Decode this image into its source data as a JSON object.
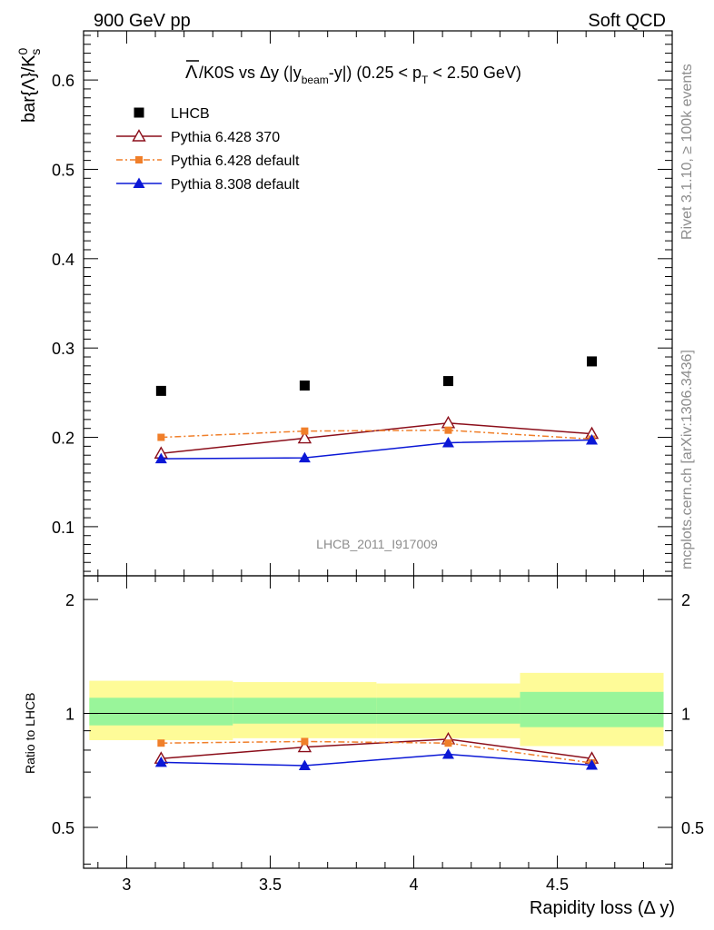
{
  "header": {
    "left": "900 GeV pp",
    "right": "Soft QCD"
  },
  "side_labels": {
    "rivet": "Rivet 3.1.10, ≥ 100k events",
    "mcplots": "mcplots.cern.ch [arXiv:1306.3436]"
  },
  "watermark": "LHCB_2011_I917009",
  "chart_data": {
    "type": "scatter",
    "title": {
      "lambda_bar": "Λ",
      "main": "/K0S vs Δy (|y",
      "beam_sub": "beam",
      "mid": "-y|) (0.25 < p",
      "t_sub": "T",
      "tail": " < 2.50 GeV)"
    },
    "ylabel": {
      "base": "bar{Λ}/K",
      "sup": "0",
      "sub": "s"
    },
    "ratio_ylabel": "Ratio to LHCB",
    "xlabel": "Rapidity loss (Δ y)",
    "xlim": [
      2.85,
      4.9
    ],
    "ylim": [
      0.045,
      0.655
    ],
    "ratio_ylim": [
      0.39,
      2.31
    ],
    "ratio_log": true,
    "x_ticks": [
      "3",
      "3.5",
      "4",
      "4.5"
    ],
    "y_ticks": [
      "0.1",
      "0.2",
      "0.3",
      "0.4",
      "0.5",
      "0.6"
    ],
    "ratio_ticks": [
      "0.5",
      "1",
      "2"
    ],
    "legend_position": "top-left",
    "bins": [
      [
        2.87,
        3.37
      ],
      [
        3.37,
        3.87
      ],
      [
        3.87,
        4.37
      ],
      [
        4.37,
        4.87
      ]
    ],
    "x": [
      3.12,
      3.62,
      4.12,
      4.62
    ],
    "series": [
      {
        "name": "LHCB",
        "color": "#000000",
        "marker": "square",
        "values": [
          0.252,
          0.258,
          0.263,
          0.285
        ],
        "ratio": [
          1.0,
          1.0,
          1.0,
          1.0
        ]
      },
      {
        "name": "Pythia 6.428 370",
        "color": "#8b0e1a",
        "marker": "triangle-open",
        "line": "solid",
        "values": [
          0.182,
          0.199,
          0.216,
          0.204
        ],
        "ratio": [
          0.76,
          0.815,
          0.855,
          0.76
        ]
      },
      {
        "name": "Pythia 6.428 default",
        "color": "#f07f2a",
        "marker": "square-small",
        "line": "dashdot",
        "values": [
          0.2,
          0.207,
          0.208,
          0.198
        ],
        "ratio": [
          0.835,
          0.843,
          0.835,
          0.74
        ]
      },
      {
        "name": "Pythia 8.308 default",
        "color": "#0b18d6",
        "marker": "triangle",
        "line": "solid",
        "values": [
          0.176,
          0.177,
          0.194,
          0.197
        ],
        "ratio": [
          0.743,
          0.728,
          0.78,
          0.73
        ]
      }
    ],
    "ratio_bands": {
      "inner_color": "#99f59a",
      "outer_color": "#fefb98",
      "inner": [
        [
          0.93,
          1.1
        ],
        [
          0.94,
          1.1
        ],
        [
          0.94,
          1.1
        ],
        [
          0.92,
          1.14
        ]
      ],
      "outer": [
        [
          0.85,
          1.22
        ],
        [
          0.86,
          1.21
        ],
        [
          0.86,
          1.2
        ],
        [
          0.82,
          1.28
        ]
      ]
    }
  }
}
